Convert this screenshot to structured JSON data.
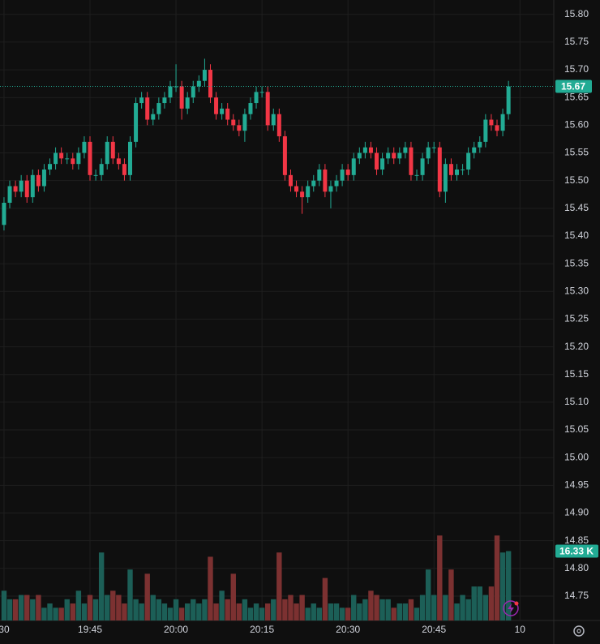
{
  "chart_data": {
    "type": "candlestick",
    "x": [
      0,
      1,
      2,
      3,
      4,
      5,
      6,
      7,
      8,
      9,
      10,
      11,
      12,
      13,
      14,
      15,
      16,
      17,
      18,
      19,
      20,
      21,
      22,
      23,
      24,
      25,
      26,
      27,
      28,
      29,
      30,
      31,
      32,
      33,
      34,
      35,
      36,
      37,
      38,
      39,
      40,
      41,
      42,
      43,
      44,
      45,
      46,
      47,
      48,
      49,
      50,
      51,
      52,
      53,
      54,
      55,
      56,
      57,
      58,
      59,
      60,
      61,
      62,
      63,
      64,
      65,
      66,
      67,
      68,
      69,
      70,
      71,
      72,
      73,
      74,
      75,
      76,
      77,
      78,
      79,
      80,
      81,
      82,
      83,
      84,
      85,
      86,
      87,
      88
    ],
    "open": [
      15.42,
      15.46,
      15.49,
      15.48,
      15.5,
      15.47,
      15.51,
      15.49,
      15.52,
      15.53,
      15.55,
      15.54,
      15.54,
      15.53,
      15.55,
      15.57,
      15.51,
      15.51,
      15.53,
      15.57,
      15.54,
      15.53,
      15.51,
      15.57,
      15.64,
      15.65,
      15.61,
      15.62,
      15.64,
      15.65,
      15.67,
      15.67,
      15.63,
      15.65,
      15.67,
      15.68,
      15.7,
      15.65,
      15.62,
      15.63,
      15.61,
      15.6,
      15.59,
      15.62,
      15.64,
      15.66,
      15.66,
      15.6,
      15.62,
      15.58,
      15.51,
      15.49,
      15.48,
      15.47,
      15.49,
      15.5,
      15.52,
      15.48,
      15.49,
      15.5,
      15.52,
      15.51,
      15.54,
      15.55,
      15.56,
      15.55,
      15.52,
      15.54,
      15.55,
      15.54,
      15.55,
      15.56,
      15.51,
      15.51,
      15.54,
      15.56,
      15.56,
      15.48,
      15.53,
      15.51,
      15.52,
      15.52,
      15.55,
      15.56,
      15.57,
      15.61,
      15.6,
      15.59,
      15.62
    ],
    "high": [
      15.47,
      15.5,
      15.5,
      15.51,
      15.51,
      15.52,
      15.52,
      15.53,
      15.54,
      15.56,
      15.56,
      15.55,
      15.55,
      15.56,
      15.58,
      15.58,
      15.52,
      15.54,
      15.58,
      15.58,
      15.55,
      15.54,
      15.58,
      15.65,
      15.66,
      15.66,
      15.63,
      15.65,
      15.66,
      15.68,
      15.71,
      15.68,
      15.66,
      15.68,
      15.69,
      15.72,
      15.71,
      15.66,
      15.64,
      15.64,
      15.62,
      15.61,
      15.63,
      15.65,
      15.67,
      15.67,
      15.67,
      15.63,
      15.63,
      15.59,
      15.52,
      15.5,
      15.49,
      15.5,
      15.51,
      15.53,
      15.53,
      15.5,
      15.51,
      15.53,
      15.53,
      15.55,
      15.56,
      15.57,
      15.57,
      15.56,
      15.55,
      15.56,
      15.56,
      15.56,
      15.57,
      15.57,
      15.52,
      15.55,
      15.57,
      15.57,
      15.57,
      15.54,
      15.54,
      15.53,
      15.53,
      15.56,
      15.57,
      15.58,
      15.62,
      15.62,
      15.61,
      15.63,
      15.68
    ],
    "low": [
      15.41,
      15.45,
      15.47,
      15.47,
      15.46,
      15.46,
      15.48,
      15.48,
      15.51,
      15.52,
      15.53,
      15.53,
      15.52,
      15.52,
      15.54,
      15.5,
      15.5,
      15.5,
      15.52,
      15.53,
      15.52,
      15.5,
      15.5,
      15.56,
      15.63,
      15.6,
      15.6,
      15.61,
      15.63,
      15.64,
      15.66,
      15.61,
      15.62,
      15.64,
      15.66,
      15.67,
      15.64,
      15.61,
      15.61,
      15.6,
      15.59,
      15.58,
      15.57,
      15.61,
      15.63,
      15.65,
      15.59,
      15.59,
      15.57,
      15.5,
      15.48,
      15.47,
      15.44,
      15.46,
      15.48,
      15.49,
      15.47,
      15.45,
      15.48,
      15.49,
      15.5,
      15.5,
      15.53,
      15.54,
      15.54,
      15.51,
      15.51,
      15.53,
      15.53,
      15.53,
      15.54,
      15.5,
      15.5,
      15.5,
      15.53,
      15.55,
      15.47,
      15.46,
      15.5,
      15.5,
      15.51,
      15.51,
      15.54,
      15.55,
      15.56,
      15.59,
      15.58,
      15.58,
      15.61
    ],
    "close": [
      15.46,
      15.49,
      15.48,
      15.5,
      15.47,
      15.51,
      15.49,
      15.52,
      15.53,
      15.55,
      15.54,
      15.54,
      15.53,
      15.55,
      15.57,
      15.51,
      15.51,
      15.53,
      15.57,
      15.54,
      15.53,
      15.51,
      15.57,
      15.64,
      15.65,
      15.61,
      15.62,
      15.64,
      15.65,
      15.67,
      15.67,
      15.63,
      15.65,
      15.67,
      15.68,
      15.7,
      15.65,
      15.62,
      15.63,
      15.61,
      15.6,
      15.59,
      15.62,
      15.64,
      15.66,
      15.66,
      15.6,
      15.62,
      15.58,
      15.51,
      15.49,
      15.48,
      15.47,
      15.49,
      15.5,
      15.52,
      15.48,
      15.49,
      15.5,
      15.52,
      15.51,
      15.54,
      15.55,
      15.56,
      15.55,
      15.52,
      15.54,
      15.55,
      15.54,
      15.55,
      15.56,
      15.51,
      15.51,
      15.54,
      15.56,
      15.56,
      15.48,
      15.53,
      15.51,
      15.52,
      15.52,
      15.55,
      15.56,
      15.57,
      15.61,
      15.6,
      15.59,
      15.62,
      15.67
    ],
    "volume": [
      7,
      5,
      5,
      6,
      6,
      5,
      6,
      3,
      4,
      3,
      3,
      5,
      4,
      7,
      4,
      6,
      5,
      16,
      6,
      7,
      6,
      4,
      12,
      5,
      4,
      11,
      6,
      5,
      4,
      3,
      5,
      3,
      4,
      5,
      4,
      5,
      15,
      4,
      7,
      5,
      11,
      4,
      5,
      3,
      4,
      3,
      4,
      5,
      16,
      5,
      6,
      4,
      6,
      3,
      4,
      3,
      10,
      4,
      4,
      3,
      3,
      6,
      4,
      5,
      7,
      6,
      5,
      5,
      3,
      4,
      4,
      5,
      3,
      6,
      12,
      6,
      20,
      6,
      12,
      4,
      6,
      5,
      8,
      8,
      6,
      8,
      20,
      16,
      16.33
    ],
    "up_color": "#22ab94",
    "down_color": "#f23645",
    "volume_up_color": "#1c5f57",
    "volume_down_color": "#7c3131",
    "ylim": [
      14.706,
      15.826
    ],
    "yticks": [
      {
        "value": 15.8,
        "label": "15.80"
      },
      15.75,
      {
        "value": 15.7,
        "label": "15.70"
      },
      15.65,
      {
        "value": 15.6,
        "label": "15.60"
      },
      15.55,
      {
        "value": 15.5,
        "label": "15.50"
      },
      15.45,
      {
        "value": 15.4,
        "label": "15.40"
      },
      15.35,
      {
        "value": 15.3,
        "label": "15.30"
      },
      15.25,
      {
        "value": 15.2,
        "label": "15.20"
      },
      15.15,
      {
        "value": 15.1,
        "label": "15.10"
      },
      15.05,
      {
        "value": 15.0,
        "label": "15.00"
      },
      14.95,
      {
        "value": 14.9,
        "label": "14.90"
      },
      14.85,
      {
        "value": 14.8,
        "label": "14.80"
      },
      14.75
    ],
    "xlim": [
      -0.7,
      95.9
    ],
    "xticks": [
      {
        "value": 0,
        "label": "30"
      },
      {
        "value": 15,
        "label": "19:45"
      },
      {
        "value": 30,
        "label": "20:00"
      },
      {
        "value": 45,
        "label": "20:15"
      },
      {
        "value": 60,
        "label": "20:30"
      },
      {
        "value": 75,
        "label": "20:45"
      },
      {
        "value": 90,
        "label": "10"
      }
    ],
    "volume_ylim": [
      0,
      21
    ],
    "last_price": 15.67,
    "last_volume": {
      "value": 16.33,
      "label": "16.33 K"
    },
    "grid": true
  }
}
